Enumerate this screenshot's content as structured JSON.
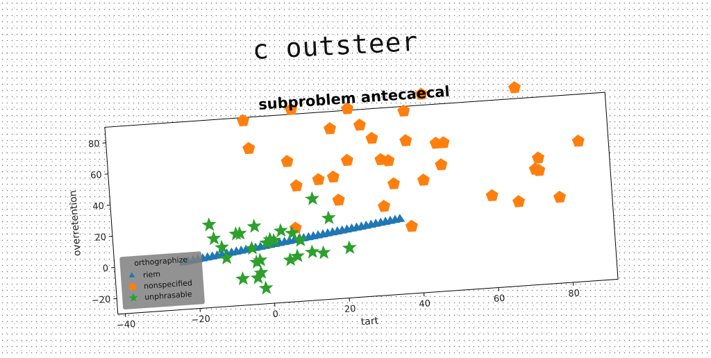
{
  "supertitle": "c outsteer",
  "chart_data": {
    "type": "scatter",
    "title": "subproblem antecaecal",
    "xlabel": "tart",
    "ylabel": "overretention",
    "xlim": [
      -42,
      92
    ],
    "ylim": [
      -30,
      90
    ],
    "xticks": [
      -40,
      -20,
      0,
      20,
      40,
      60,
      80
    ],
    "yticks": [
      -20,
      0,
      20,
      40,
      60,
      80
    ],
    "grid": false,
    "legend": {
      "title": "orthographize",
      "position": "lower-left"
    },
    "series": [
      {
        "name": "riem",
        "marker": "triangle",
        "color": "#1f77b4",
        "x": [
          -23.5,
          -22.2,
          -20.9,
          -19.6,
          -18.3,
          -17.0,
          -15.7,
          -14.4,
          -13.1,
          -11.8,
          -10.5,
          -9.2,
          -7.9,
          -6.6,
          -5.3,
          -4.0,
          -2.7,
          -1.4,
          -0.1,
          1.2,
          2.5,
          3.8,
          5.1,
          6.4,
          7.7,
          9.0,
          10.3,
          11.6,
          12.9,
          14.2,
          15.5,
          16.8,
          18.1,
          19.4,
          20.7,
          22.0,
          23.3,
          24.6,
          25.9,
          27.2,
          28.5,
          29.8,
          31.1,
          32.4,
          33.7,
          35.0
        ],
        "y": [
          0.0,
          0.4,
          0.8,
          1.2,
          1.6,
          2.0,
          2.4,
          2.8,
          3.2,
          3.6,
          4.0,
          4.4,
          4.8,
          5.2,
          5.6,
          6.0,
          6.4,
          6.8,
          7.2,
          7.6,
          8.0,
          8.4,
          8.8,
          9.2,
          9.6,
          10.0,
          10.4,
          10.8,
          11.2,
          11.6,
          12.0,
          12.4,
          12.8,
          13.2,
          13.6,
          14.0,
          14.4,
          14.8,
          15.2,
          15.6,
          16.0,
          16.4,
          16.8,
          17.2,
          17.6,
          18.0
        ]
      },
      {
        "name": "nonspecified",
        "marker": "pentagon",
        "color": "#ff7f0e",
        "x": [
          -5,
          -4,
          8,
          18,
          23,
          26,
          29,
          31,
          22,
          38,
          43,
          38,
          46,
          48,
          33,
          34,
          42,
          6,
          8,
          14,
          18,
          19,
          7,
          31,
          38,
          47,
          60,
          67,
          78,
          84,
          72,
          73,
          73,
          68
        ],
        "y": [
          88,
          70,
          93,
          79,
          91,
          80,
          71,
          57,
          58,
          87,
          97,
          68,
          65,
          65,
          56,
          41,
          42,
          60,
          44,
          47,
          48,
          33,
          17,
          27,
          13,
          51,
          29,
          24,
          25,
          60,
          44,
          51,
          43,
          97
        ]
      },
      {
        "name": "unphrasable",
        "marker": "star",
        "color": "#2ca02c",
        "x": [
          -16,
          -15,
          -13,
          -12,
          -9,
          -8,
          -4,
          -5,
          -4,
          -3,
          -1,
          0,
          1,
          3,
          6,
          7,
          8,
          11,
          12,
          14,
          16,
          21,
          5,
          -3,
          -8,
          -4,
          -2
        ],
        "y": [
          23,
          14,
          8,
          1,
          16,
          16,
          20,
          6,
          -3,
          -2,
          9,
          11,
          10,
          16,
          14,
          -1,
          9,
          1,
          35,
          0,
          22,
          2,
          -3,
          -10,
          -13,
          -13,
          -20
        ]
      }
    ]
  }
}
